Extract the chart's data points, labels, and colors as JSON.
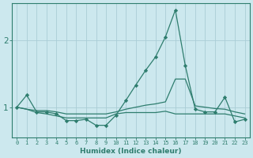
{
  "xlabel": "Humidex (Indice chaleur)",
  "bg_color": "#cce8ee",
  "line_color": "#2e7d6e",
  "grid_color": "#aacdd6",
  "xlim": [
    -0.5,
    23.5
  ],
  "ylim": [
    0.55,
    2.55
  ],
  "yticks": [
    1,
    2
  ],
  "xticks": [
    0,
    1,
    2,
    3,
    4,
    5,
    6,
    7,
    8,
    9,
    10,
    11,
    12,
    13,
    14,
    15,
    16,
    17,
    18,
    19,
    20,
    21,
    22,
    23
  ],
  "series1_x": [
    0,
    1,
    2,
    3,
    4,
    5,
    6,
    7,
    8,
    9,
    10,
    11,
    12,
    13,
    14,
    15,
    16,
    17,
    18,
    19,
    20,
    21,
    22,
    23
  ],
  "series1_y": [
    1.0,
    1.18,
    0.93,
    0.93,
    0.9,
    0.8,
    0.8,
    0.82,
    0.73,
    0.73,
    0.88,
    1.1,
    1.33,
    1.55,
    1.75,
    2.05,
    2.45,
    1.62,
    0.97,
    0.93,
    0.93,
    1.15,
    0.78,
    0.82
  ],
  "series2_x": [
    0,
    1,
    2,
    3,
    4,
    5,
    6,
    7,
    8,
    9,
    10,
    11,
    12,
    13,
    14,
    15,
    16,
    17,
    18,
    19,
    20,
    21,
    22,
    23
  ],
  "series2_y": [
    1.0,
    0.97,
    0.95,
    0.95,
    0.93,
    0.9,
    0.9,
    0.9,
    0.9,
    0.9,
    0.93,
    0.97,
    1.0,
    1.03,
    1.05,
    1.08,
    1.42,
    1.42,
    1.02,
    1.0,
    0.98,
    0.97,
    0.93,
    0.9
  ],
  "series3_x": [
    0,
    1,
    2,
    3,
    4,
    5,
    6,
    7,
    8,
    9,
    10,
    11,
    12,
    13,
    14,
    15,
    16,
    17,
    18,
    19,
    20,
    21,
    22,
    23
  ],
  "series3_y": [
    1.0,
    0.97,
    0.92,
    0.9,
    0.87,
    0.84,
    0.84,
    0.84,
    0.84,
    0.84,
    0.9,
    0.92,
    0.92,
    0.92,
    0.92,
    0.94,
    0.9,
    0.9,
    0.9,
    0.9,
    0.9,
    0.9,
    0.87,
    0.84
  ]
}
